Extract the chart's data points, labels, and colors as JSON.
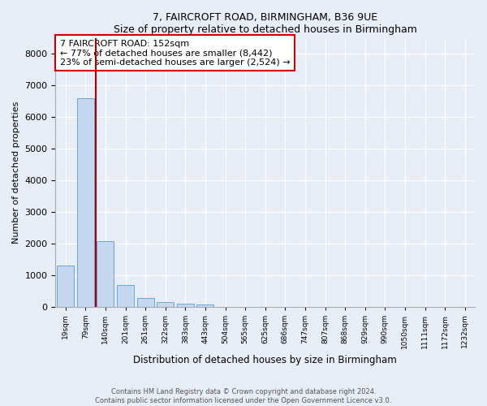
{
  "title1": "7, FAIRCROFT ROAD, BIRMINGHAM, B36 9UE",
  "title2": "Size of property relative to detached houses in Birmingham",
  "xlabel": "Distribution of detached houses by size in Birmingham",
  "ylabel": "Number of detached properties",
  "categories": [
    "19sqm",
    "79sqm",
    "140sqm",
    "201sqm",
    "261sqm",
    "322sqm",
    "383sqm",
    "443sqm",
    "504sqm",
    "565sqm",
    "625sqm",
    "686sqm",
    "747sqm",
    "807sqm",
    "868sqm",
    "929sqm",
    "990sqm",
    "1050sqm",
    "1111sqm",
    "1172sqm",
    "1232sqm"
  ],
  "values": [
    1310,
    6600,
    2060,
    690,
    260,
    140,
    90,
    55,
    0,
    0,
    0,
    0,
    0,
    0,
    0,
    0,
    0,
    0,
    0,
    0,
    0
  ],
  "bar_color": "#c5d8f0",
  "bar_edge_color": "#5b9bd5",
  "vline_x_idx": 1,
  "vline_color": "#aa0000",
  "annotation_text": "7 FAIRCROFT ROAD: 152sqm\n← 77% of detached houses are smaller (8,442)\n23% of semi-detached houses are larger (2,524) →",
  "annotation_box_edge_color": "#cc0000",
  "ylim": [
    0,
    8500
  ],
  "yticks": [
    0,
    1000,
    2000,
    3000,
    4000,
    5000,
    6000,
    7000,
    8000
  ],
  "bg_color": "#e8eef8",
  "footer1": "Contains HM Land Registry data © Crown copyright and database right 2024.",
  "footer2": "Contains public sector information licensed under the Open Government Licence v3.0."
}
